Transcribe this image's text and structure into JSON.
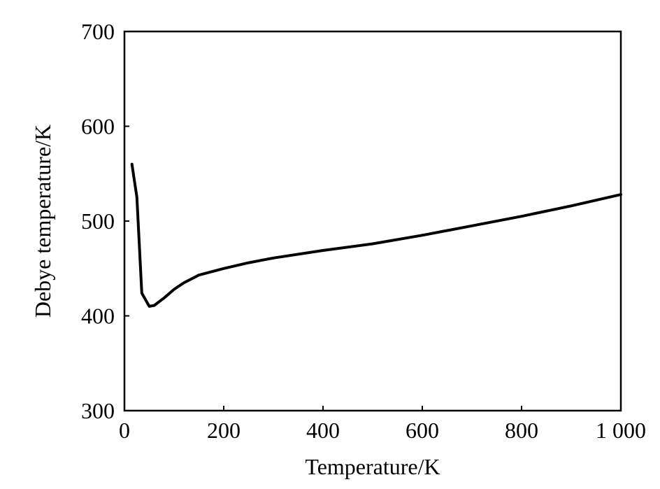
{
  "chart_data": {
    "type": "line",
    "title": "",
    "xlabel": "Temperature/K",
    "ylabel": "Debye temperature/K",
    "xlim": [
      0,
      1000
    ],
    "ylim": [
      300,
      700
    ],
    "xticks": [
      0,
      200,
      400,
      600,
      800,
      1000
    ],
    "xtick_labels": [
      "0",
      "200",
      "400",
      "600",
      "800",
      "1 000"
    ],
    "yticks": [
      300,
      400,
      500,
      600,
      700
    ],
    "ytick_labels": [
      "300",
      "400",
      "500",
      "600",
      "700"
    ],
    "grid": false,
    "legend": "none",
    "series": [
      {
        "color": "#000000",
        "x": [
          15,
          25,
          35,
          50,
          60,
          80,
          100,
          120,
          150,
          200,
          250,
          300,
          400,
          500,
          600,
          700,
          800,
          900,
          1000
        ],
        "y": [
          560,
          525,
          424,
          410,
          411,
          419,
          428,
          435,
          443,
          450,
          456,
          461,
          469,
          476,
          485,
          495,
          505,
          516,
          528
        ]
      }
    ]
  }
}
